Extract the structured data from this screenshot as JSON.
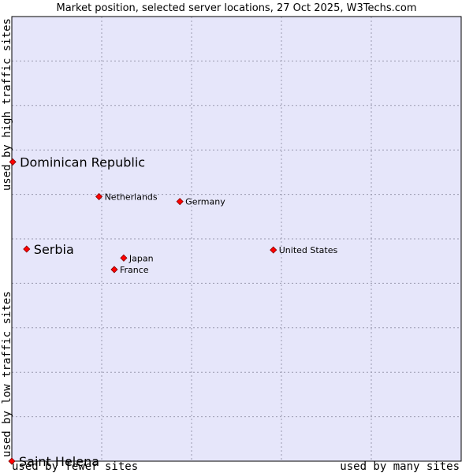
{
  "chart_data": {
    "type": "scatter",
    "title": "Market position, selected server locations, 27 Oct 2025, W3Techs.com",
    "xlabel_low": "used by fewer sites",
    "xlabel_high": "used by many sites",
    "ylabel_low": "used by low traffic sites",
    "ylabel_high": "used by high traffic sites",
    "xlim": [
      0,
      100
    ],
    "ylim": [
      0,
      100
    ],
    "grid": true,
    "colors": {
      "plot_bg": "#e6e6fa",
      "grid": "#9a9ab0",
      "marker": "#ff0000",
      "frame": "#000000"
    },
    "points": [
      {
        "name": "Dominican Republic",
        "x": 0.2,
        "y": 67.3,
        "emphasis": true
      },
      {
        "name": "Netherlands",
        "x": 19.4,
        "y": 59.5,
        "emphasis": false
      },
      {
        "name": "Germany",
        "x": 37.4,
        "y": 58.4,
        "emphasis": false
      },
      {
        "name": "Serbia",
        "x": 3.3,
        "y": 47.7,
        "emphasis": true
      },
      {
        "name": "United States",
        "x": 58.2,
        "y": 47.5,
        "emphasis": false
      },
      {
        "name": "Japan",
        "x": 24.9,
        "y": 45.7,
        "emphasis": false
      },
      {
        "name": "France",
        "x": 22.8,
        "y": 43.1,
        "emphasis": false
      },
      {
        "name": "Saint Helena",
        "x": 0.0,
        "y": 0.0,
        "emphasis": true
      }
    ]
  }
}
